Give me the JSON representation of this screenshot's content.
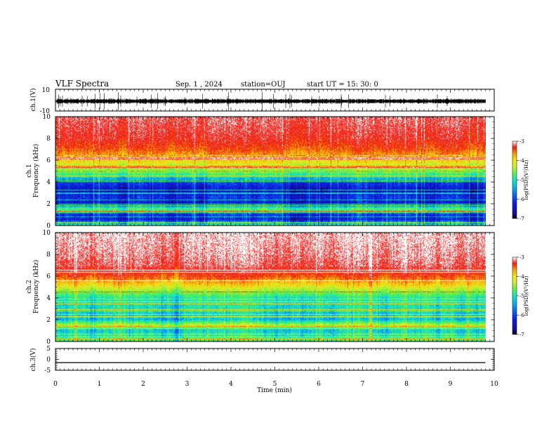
{
  "header": {
    "title": "VLF Spectra",
    "date": "Sep. 1 , 2024",
    "station": "station=OUJ",
    "start": "start  UT =  15: 30: 0"
  },
  "chart_data": [
    {
      "type": "line",
      "panel": "ch1-waveform",
      "ylabel": "ch.1(V)",
      "ylim": [
        -10,
        10
      ],
      "yticks": [
        "10",
        "-10"
      ],
      "xlim": [
        0,
        10
      ],
      "data_end_min": 9.8,
      "baseline": -1,
      "noise": "dense black noise trace with spikes"
    },
    {
      "type": "heatmap",
      "panel": "ch1-spectrogram",
      "ylabel": "ch.1\nFrequency (kHz)",
      "ylim": [
        0,
        10
      ],
      "yticks": [
        "0",
        "2",
        "4",
        "6",
        "8",
        "10"
      ],
      "xlim": [
        0,
        10
      ],
      "data_end_min": 9.8,
      "colorbar": {
        "label": "log(PSD)(V²/Hz)",
        "range": [
          -7,
          -3
        ],
        "ticks": [
          "-3",
          "-4",
          "-5",
          "-6",
          "-7"
        ]
      },
      "profile_log_psd": [
        [
          0.0,
          -5.2
        ],
        [
          0.5,
          -6.4
        ],
        [
          1.0,
          -6.3
        ],
        [
          1.5,
          -5.0
        ],
        [
          2.0,
          -6.5
        ],
        [
          2.6,
          -6.3
        ],
        [
          3.2,
          -6.6
        ],
        [
          4.0,
          -6.2
        ],
        [
          4.5,
          -5.4
        ],
        [
          5.0,
          -4.9
        ],
        [
          5.6,
          -4.5
        ],
        [
          6.2,
          -4.1
        ],
        [
          7.0,
          -3.7
        ],
        [
          8.0,
          -3.4
        ],
        [
          9.0,
          -3.3
        ],
        [
          10.0,
          -3.2
        ]
      ]
    },
    {
      "type": "heatmap",
      "panel": "ch2-spectrogram",
      "ylabel": "ch.2\nFrequency (kHz)",
      "ylim": [
        0,
        10
      ],
      "yticks": [
        "0",
        "2",
        "4",
        "6",
        "8",
        "10"
      ],
      "xlim": [
        0,
        10
      ],
      "data_end_min": 9.8,
      "colorbar": {
        "label": "log(PSD)(V²/Hz)",
        "range": [
          -7,
          -3
        ],
        "ticks": [
          "-3",
          "-4",
          "-5",
          "-6",
          "-7"
        ]
      },
      "profile_log_psd": [
        [
          0.0,
          -5.0
        ],
        [
          1.0,
          -5.5
        ],
        [
          1.5,
          -4.6
        ],
        [
          2.0,
          -5.6
        ],
        [
          3.0,
          -5.4
        ],
        [
          4.0,
          -5.3
        ],
        [
          4.6,
          -4.8
        ],
        [
          5.2,
          -4.2
        ],
        [
          6.0,
          -3.6
        ],
        [
          7.0,
          -3.2
        ],
        [
          8.0,
          -3.1
        ],
        [
          10.0,
          -3.0
        ]
      ]
    },
    {
      "type": "line",
      "panel": "ch3-waveform",
      "ylabel": "ch.3(V)",
      "ylim": [
        -5,
        5
      ],
      "yticks": [
        "5",
        "0",
        "-5"
      ],
      "xlim": [
        0,
        10
      ],
      "data_end_min": 9.8,
      "baseline": -1.5
    }
  ],
  "xaxis": {
    "label": "Time (min)",
    "ticks": [
      "0",
      "1",
      "2",
      "3",
      "4",
      "5",
      "6",
      "7",
      "8",
      "9",
      "10"
    ]
  },
  "colors": {
    "colormap": [
      "#1a0a9a",
      "#0a1ee6",
      "#0aa0f0",
      "#14e8c8",
      "#5cf050",
      "#d2f032",
      "#f5e114",
      "#f59b0a",
      "#f01e0a",
      "#f03c3c"
    ]
  }
}
